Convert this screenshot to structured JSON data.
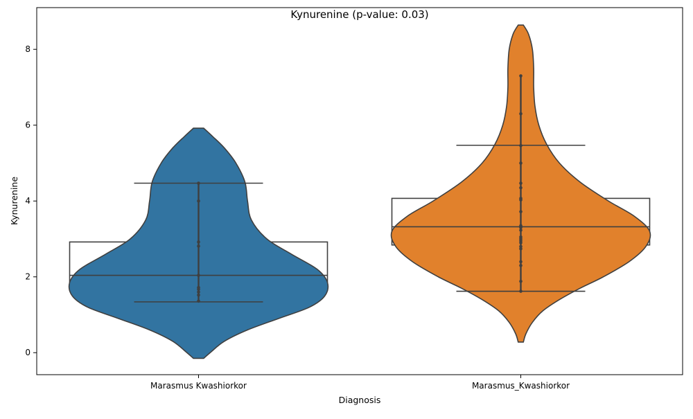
{
  "chart_data": {
    "type": "violin",
    "title": "Kynurenine (p-value: 0.03)",
    "xlabel": "Diagnosis",
    "ylabel": "Kynurenine",
    "ylim": [
      -0.58,
      9.1
    ],
    "yticks": [
      0,
      2,
      4,
      6,
      8
    ],
    "grid": false,
    "categories": [
      "Marasmus Kwashiorkor",
      "Marasmus_Kwashiorkor"
    ],
    "colors": [
      "#3274a1",
      "#e1812c"
    ],
    "line_color": "#3f3f3f",
    "groups": [
      {
        "category": "Marasmus Kwashiorkor",
        "color": "#3274a1",
        "points": [
          4.47,
          4.0,
          2.92,
          2.81,
          2.04,
          1.72,
          1.67,
          1.6,
          1.52,
          1.36
        ],
        "box": {
          "q1": 1.64,
          "median": 2.04,
          "q3": 2.92,
          "whisker_low": 1.34,
          "whisker_high": 4.47
        },
        "density": {
          "y": [
            -0.15,
            0.0,
            0.3,
            0.6,
            0.9,
            1.2,
            1.5,
            1.85,
            2.2,
            2.6,
            3.0,
            3.5,
            4.0,
            4.5,
            5.0,
            5.4,
            5.7,
            5.92
          ],
          "w": [
            0.04,
            0.09,
            0.2,
            0.38,
            0.62,
            0.86,
            0.98,
            1.0,
            0.92,
            0.72,
            0.53,
            0.41,
            0.38,
            0.36,
            0.29,
            0.2,
            0.11,
            0.04
          ]
        }
      },
      {
        "category": "Marasmus_Kwashiorkor",
        "color": "#e1812c",
        "points": [
          7.3,
          6.3,
          5.46,
          5.0,
          4.47,
          4.35,
          4.07,
          4.03,
          3.72,
          3.35,
          3.3,
          3.23,
          3.05,
          3.0,
          2.95,
          2.9,
          2.8,
          2.74,
          2.4,
          2.3,
          1.88,
          1.62
        ],
        "box": {
          "q1": 2.84,
          "median": 3.32,
          "q3": 4.07,
          "whisker_low": 1.62,
          "whisker_high": 5.47
        },
        "density": {
          "y": [
            0.28,
            0.5,
            0.8,
            1.1,
            1.4,
            1.7,
            2.0,
            2.4,
            2.8,
            3.2,
            3.6,
            4.0,
            4.5,
            5.0,
            5.5,
            6.0,
            6.5,
            7.0,
            7.5,
            8.0,
            8.4,
            8.64
          ],
          "w": [
            0.02,
            0.04,
            0.09,
            0.17,
            0.3,
            0.46,
            0.64,
            0.84,
            0.97,
            1.0,
            0.88,
            0.68,
            0.46,
            0.3,
            0.2,
            0.14,
            0.11,
            0.1,
            0.1,
            0.09,
            0.06,
            0.02
          ]
        }
      }
    ]
  }
}
